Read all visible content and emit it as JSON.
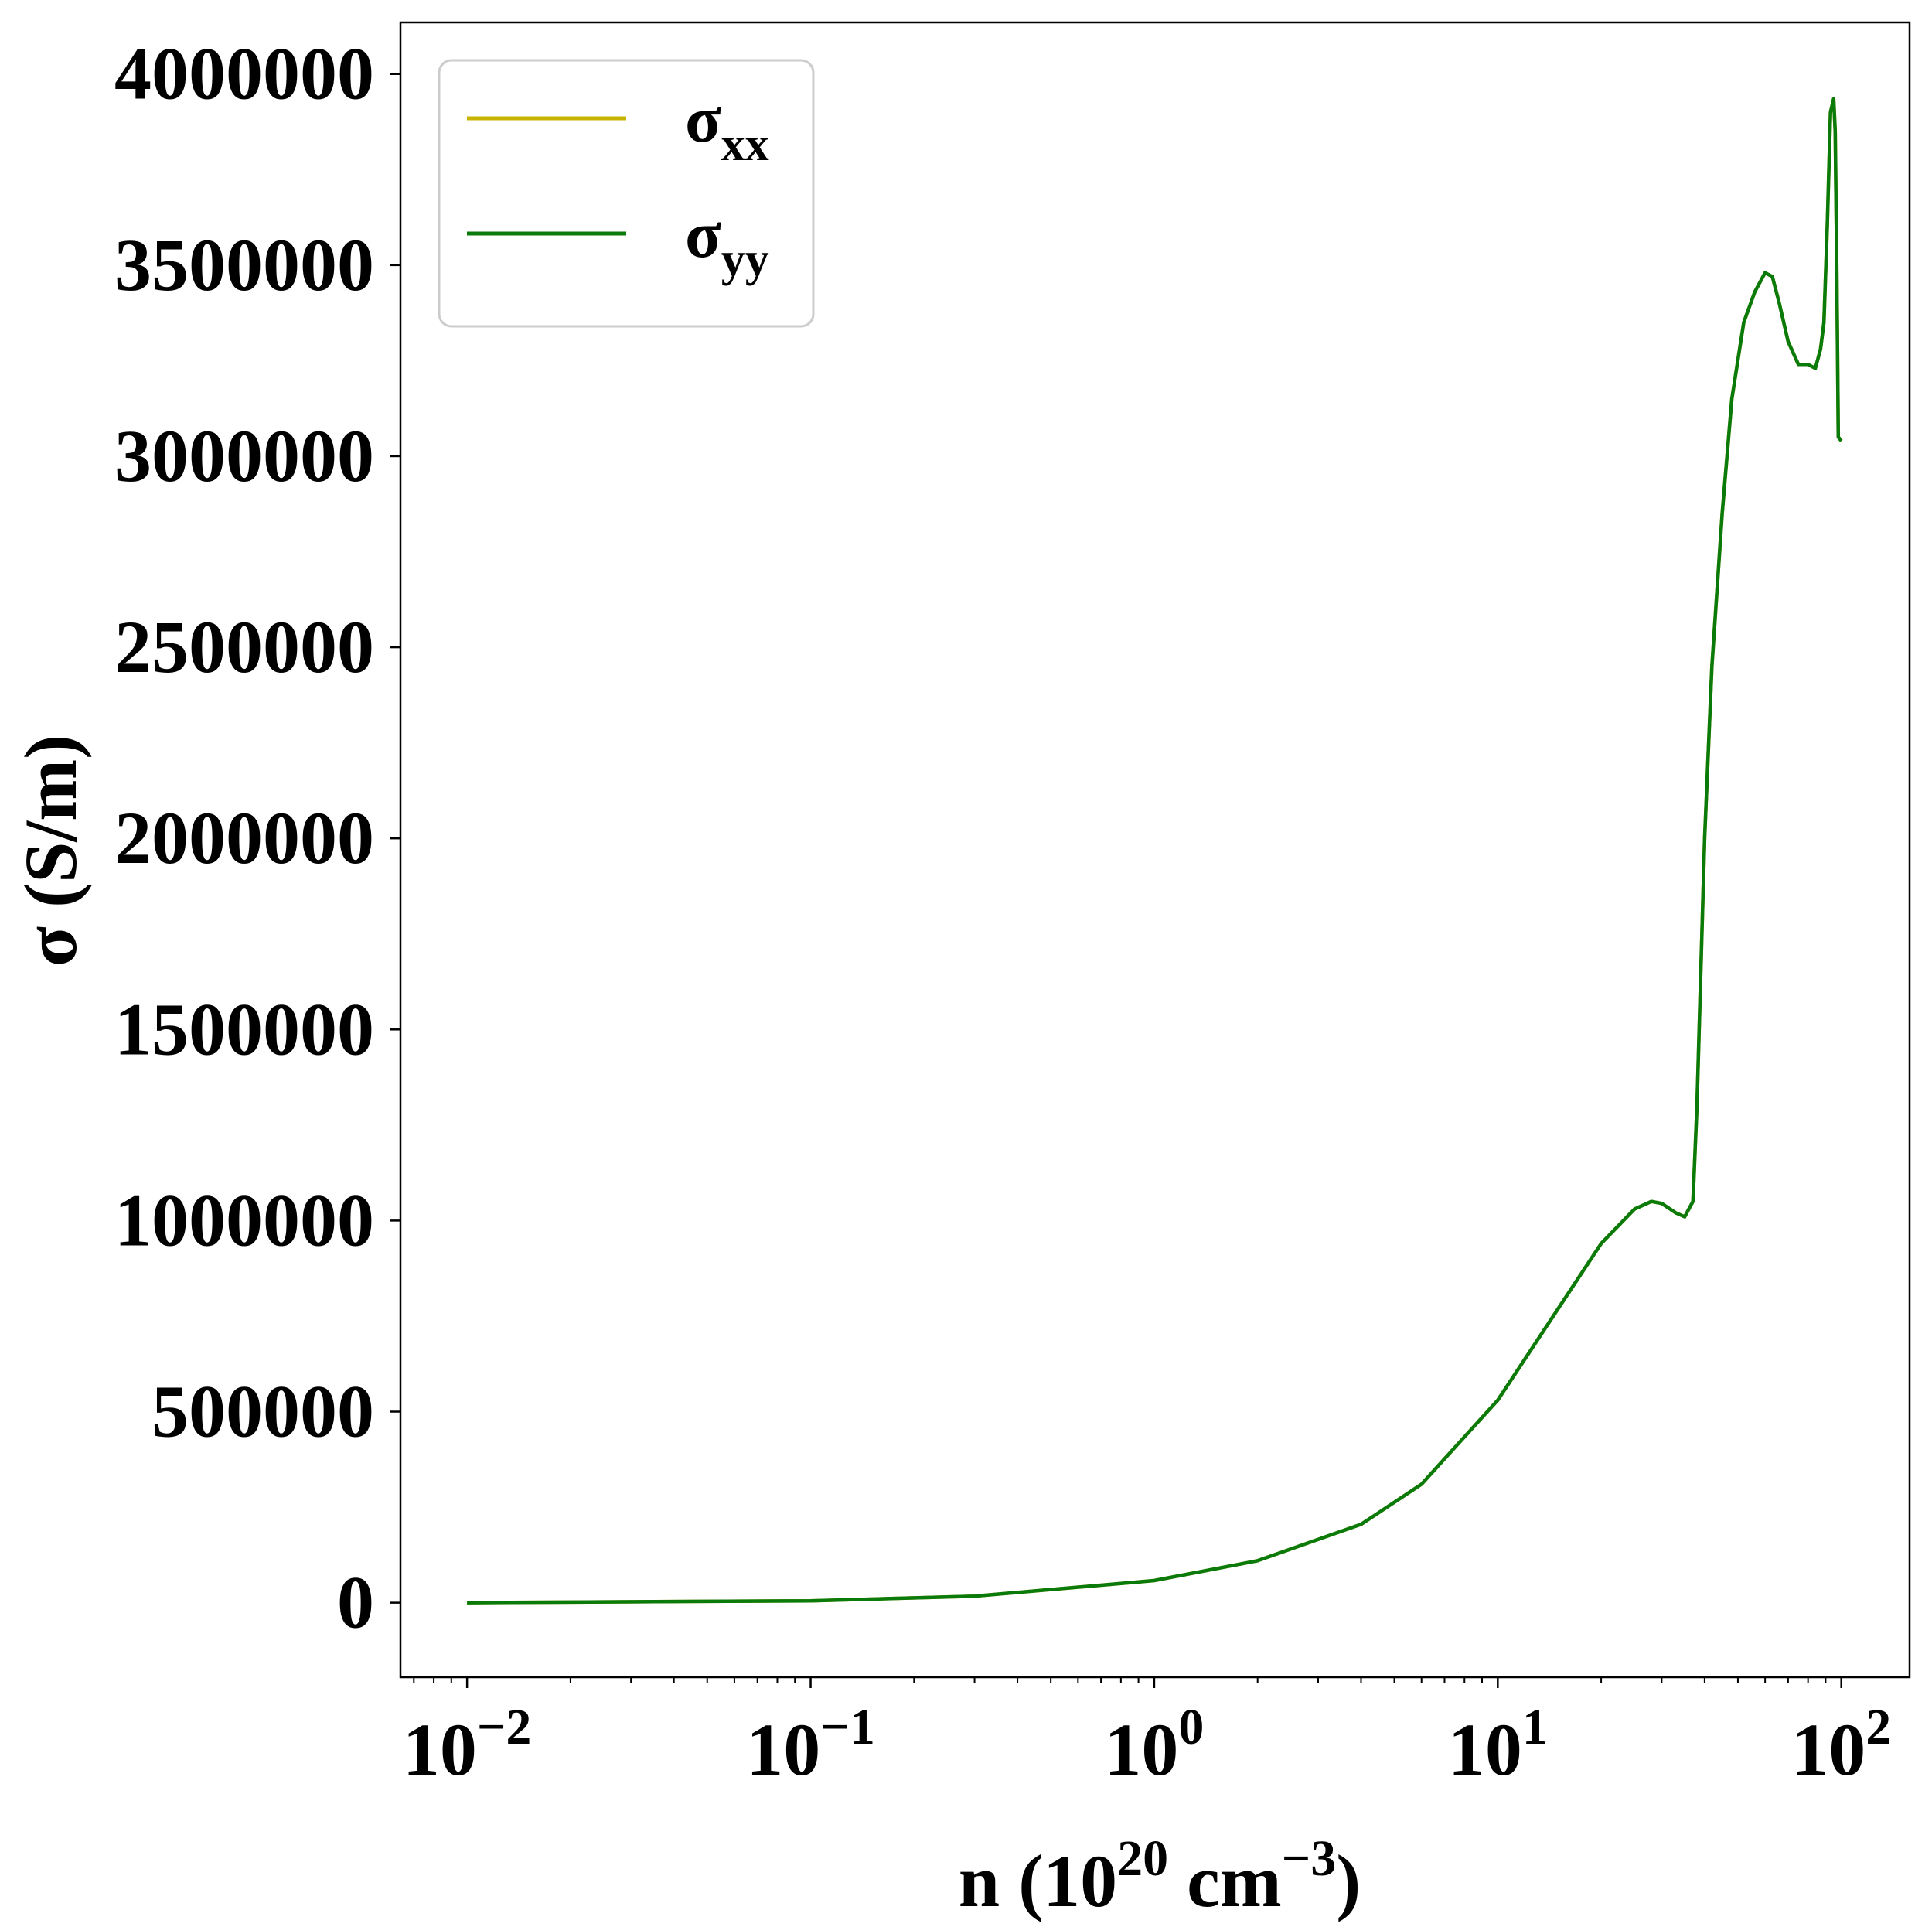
{
  "chart_data": {
    "type": "line",
    "xlabel": "n (10^20 cm^-3)",
    "xlabel_parts": {
      "pre": "n (10",
      "exp1": "20",
      "mid": " cm",
      "exp2": "−3",
      "post": ")"
    },
    "ylabel": "σ (S/m)",
    "x_scale": "log",
    "xlim": [
      0.0064,
      158
    ],
    "ylim": [
      -195000,
      4135000
    ],
    "x_ticks": [
      {
        "value": 0.01,
        "base": "10",
        "exp": "−2"
      },
      {
        "value": 0.1,
        "base": "10",
        "exp": "−1"
      },
      {
        "value": 1,
        "base": "10",
        "exp": "0"
      },
      {
        "value": 10,
        "base": "10",
        "exp": "1"
      },
      {
        "value": 100,
        "base": "10",
        "exp": "2"
      }
    ],
    "y_ticks": [
      {
        "value": 0,
        "label": "0"
      },
      {
        "value": 500000,
        "label": "500000"
      },
      {
        "value": 1000000,
        "label": "1000000"
      },
      {
        "value": 1500000,
        "label": "1500000"
      },
      {
        "value": 2000000,
        "label": "2000000"
      },
      {
        "value": 2500000,
        "label": "2500000"
      },
      {
        "value": 3000000,
        "label": "3000000"
      },
      {
        "value": 3500000,
        "label": "3500000"
      },
      {
        "value": 4000000,
        "label": "4000000"
      }
    ],
    "grid": false,
    "legend_position": "top-left",
    "series": [
      {
        "name": "σxx",
        "symbol": "σ",
        "subscript": "xx",
        "color": "#c8b400",
        "x": [
          0.01,
          0.1,
          0.3,
          1,
          2,
          4,
          6,
          10,
          15,
          20,
          25,
          28,
          30,
          33,
          35,
          37,
          38,
          40,
          42,
          45,
          48,
          52,
          56,
          60,
          63,
          66,
          70,
          75,
          80,
          84,
          87,
          89,
          91,
          93,
          95,
          96,
          97,
          98,
          100
        ],
        "y": [
          0,
          5000,
          17000,
          58000,
          110000,
          205000,
          310000,
          530000,
          770000,
          940000,
          1030000,
          1050000,
          1045000,
          1020000,
          1010000,
          1050000,
          1300000,
          2000000,
          2450000,
          2850000,
          3150000,
          3350000,
          3430000,
          3480000,
          3470000,
          3400000,
          3300000,
          3240000,
          3240000,
          3230000,
          3280000,
          3350000,
          3600000,
          3900000,
          3935000,
          3850000,
          3500000,
          3050000,
          3040000
        ]
      },
      {
        "name": "σyy",
        "symbol": "σ",
        "subscript": "yy",
        "color": "#0a7a0a",
        "x": [
          0.01,
          0.1,
          0.3,
          1,
          2,
          4,
          6,
          10,
          15,
          20,
          25,
          28,
          30,
          33,
          35,
          37,
          38,
          40,
          42,
          45,
          48,
          52,
          56,
          60,
          63,
          66,
          70,
          75,
          80,
          84,
          87,
          89,
          91,
          93,
          95,
          96,
          97,
          98,
          100
        ],
        "y": [
          0,
          5000,
          17000,
          58000,
          110000,
          205000,
          310000,
          530000,
          770000,
          940000,
          1030000,
          1050000,
          1045000,
          1020000,
          1010000,
          1050000,
          1300000,
          2000000,
          2450000,
          2850000,
          3150000,
          3350000,
          3430000,
          3480000,
          3470000,
          3400000,
          3300000,
          3240000,
          3240000,
          3230000,
          3280000,
          3350000,
          3600000,
          3900000,
          3935000,
          3850000,
          3500000,
          3050000,
          3040000
        ]
      }
    ]
  }
}
